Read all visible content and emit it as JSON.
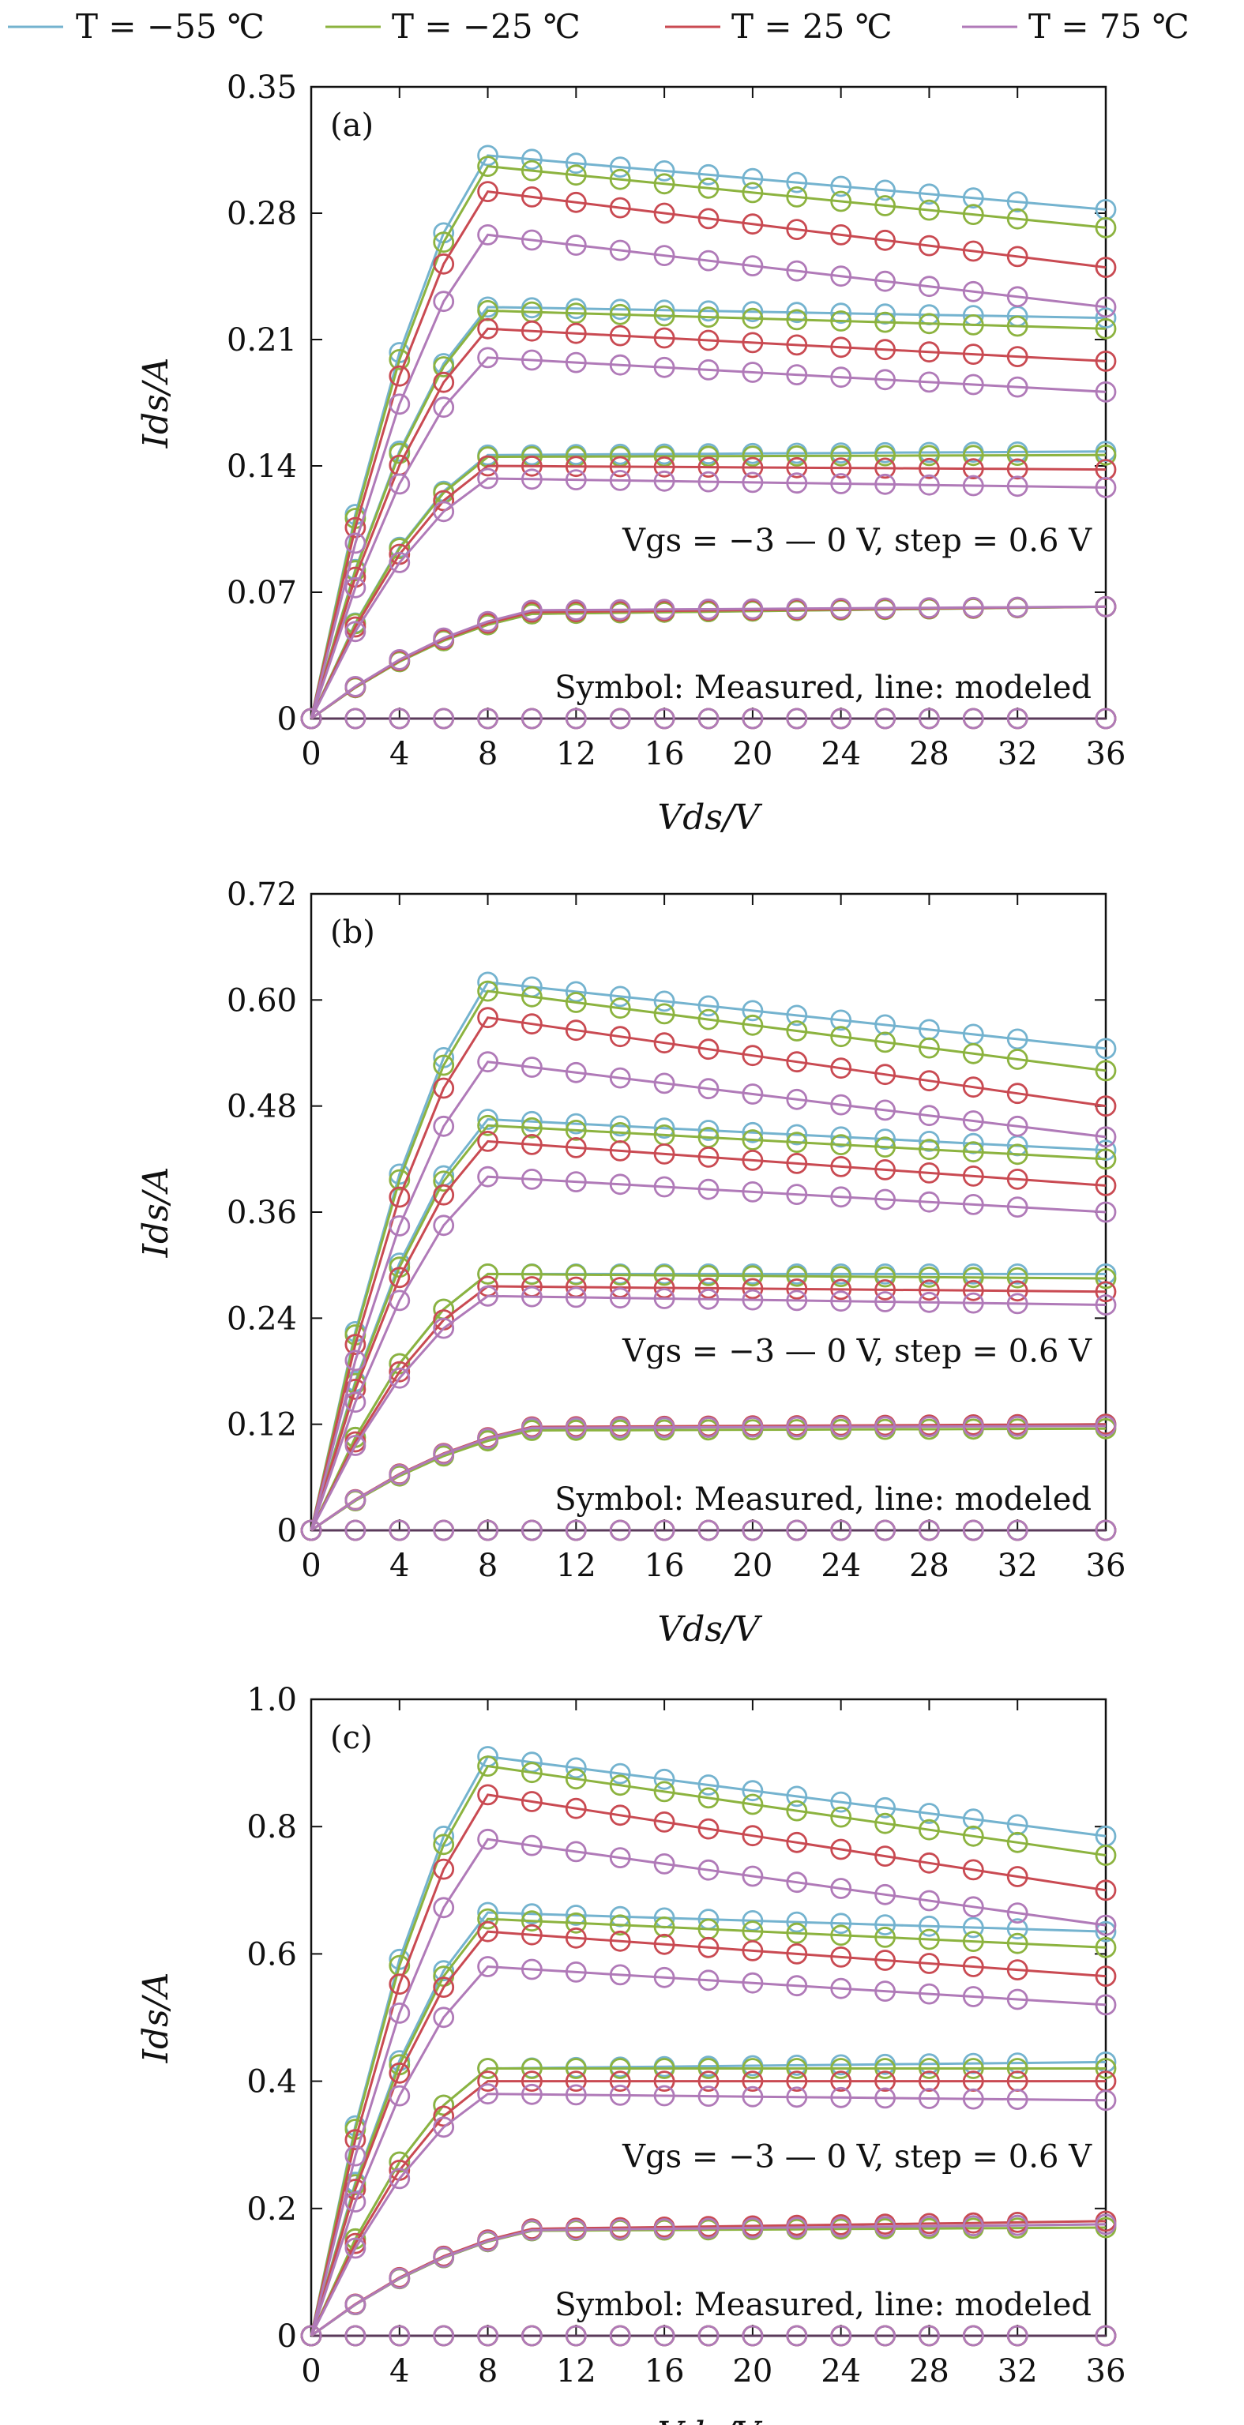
{
  "legend": [
    {
      "label": "T = −55 ℃",
      "color": "#74b3cf"
    },
    {
      "label": "T = −25 ℃",
      "color": "#8cb33f"
    },
    {
      "label": "T = 25 ℃",
      "color": "#c94a52"
    },
    {
      "label": "T = 75 ℃",
      "color": "#b07ab8"
    }
  ],
  "chart_data": [
    {
      "type": "line",
      "panel_label": "(a)",
      "xlabel": "Vds/V",
      "ylabel": "Ids/A",
      "xlim": [
        0,
        36
      ],
      "ylim": [
        0,
        0.35
      ],
      "xticks": [
        0,
        4,
        8,
        12,
        16,
        20,
        24,
        28,
        32,
        36
      ],
      "yticks": [
        0,
        0.07,
        0.14,
        0.21,
        0.28,
        0.35
      ],
      "ytick_labels": [
        "0",
        "0.07",
        "0.14",
        "0.21",
        "0.28",
        "0.35"
      ],
      "annotations": [
        "Vgs = −3 — 0 V, step = 0.6 V",
        "Symbol: Measured, line: modeled"
      ],
      "x": [
        0,
        2,
        4,
        6,
        8,
        10,
        12,
        14,
        16,
        18,
        20,
        22,
        24,
        26,
        28,
        30,
        32,
        36
      ],
      "vgs_curves": [
        {
          "vgs": -3.0,
          "peaks": [
            0,
            0,
            0,
            0
          ]
        },
        {
          "vgs": -2.4,
          "peaks": [
            0.058,
            0.058,
            0.059,
            0.06
          ]
        },
        {
          "vgs": -1.8,
          "peaks": [
            0.146,
            0.145,
            0.14,
            0.133
          ]
        },
        {
          "vgs": -1.2,
          "peaks": [
            0.228,
            0.226,
            0.216,
            0.2
          ]
        },
        {
          "vgs": -0.6,
          "peaks": [
            0.312,
            0.306,
            0.292,
            0.268
          ]
        }
      ],
      "end_values": {
        "-0.6": [
          0.282,
          0.272,
          0.25,
          0.228
        ],
        "-1.2": [
          0.222,
          0.216,
          0.198,
          0.181
        ],
        "-1.8": [
          0.148,
          0.146,
          0.138,
          0.128
        ],
        "-2.4": [
          0.062,
          0.062,
          0.062,
          0.062
        ]
      }
    },
    {
      "type": "line",
      "panel_label": "(b)",
      "xlabel": "Vds/V",
      "ylabel": "Ids/A",
      "xlim": [
        0,
        36
      ],
      "ylim": [
        0,
        0.72
      ],
      "xticks": [
        0,
        4,
        8,
        12,
        16,
        20,
        24,
        28,
        32,
        36
      ],
      "yticks": [
        0,
        0.12,
        0.24,
        0.36,
        0.48,
        0.6,
        0.72
      ],
      "ytick_labels": [
        "0",
        "0.12",
        "0.24",
        "0.36",
        "0.48",
        "0.60",
        "0.72"
      ],
      "annotations": [
        "Vgs = −3 — 0 V, step = 0.6 V",
        "Symbol: Measured, line: modeled"
      ],
      "x": [
        0,
        2,
        4,
        6,
        8,
        10,
        12,
        14,
        16,
        18,
        20,
        22,
        24,
        26,
        28,
        30,
        32,
        36
      ],
      "vgs_curves": [
        {
          "vgs": -3.0,
          "peaks": [
            0,
            0,
            0,
            0
          ]
        },
        {
          "vgs": -2.4,
          "peaks": [
            0.115,
            0.113,
            0.117,
            0.116
          ]
        },
        {
          "vgs": -1.8,
          "peaks": [
            0.29,
            0.29,
            0.276,
            0.265
          ]
        },
        {
          "vgs": -1.2,
          "peaks": [
            0.465,
            0.458,
            0.44,
            0.4
          ]
        },
        {
          "vgs": -0.6,
          "peaks": [
            0.62,
            0.61,
            0.58,
            0.53
          ]
        }
      ],
      "end_values": {
        "-0.6": [
          0.545,
          0.52,
          0.48,
          0.445
        ],
        "-1.2": [
          0.43,
          0.42,
          0.39,
          0.36
        ],
        "-1.8": [
          0.29,
          0.285,
          0.27,
          0.255
        ],
        "-2.4": [
          0.12,
          0.115,
          0.12,
          0.118
        ]
      }
    },
    {
      "type": "line",
      "panel_label": "(c)",
      "xlabel": "Vds/V",
      "ylabel": "Ids/A",
      "xlim": [
        0,
        36
      ],
      "ylim": [
        0,
        1.0
      ],
      "xticks": [
        0,
        4,
        8,
        12,
        16,
        20,
        24,
        28,
        32,
        36
      ],
      "yticks": [
        0,
        0.2,
        0.4,
        0.6,
        0.8,
        1.0
      ],
      "ytick_labels": [
        "0",
        "0.2",
        "0.4",
        "0.6",
        "0.8",
        "1.0"
      ],
      "annotations": [
        "Vgs = −3 — 0 V, step = 0.6 V",
        "Symbol: Measured, line: modeled"
      ],
      "x": [
        0,
        2,
        4,
        6,
        8,
        10,
        12,
        14,
        16,
        18,
        20,
        22,
        24,
        26,
        28,
        30,
        32,
        36
      ],
      "vgs_curves": [
        {
          "vgs": -3.0,
          "peaks": [
            0,
            0,
            0,
            0
          ]
        },
        {
          "vgs": -2.4,
          "peaks": [
            0.165,
            0.165,
            0.168,
            0.166
          ]
        },
        {
          "vgs": -1.8,
          "peaks": [
            0.42,
            0.42,
            0.4,
            0.38
          ]
        },
        {
          "vgs": -1.2,
          "peaks": [
            0.665,
            0.655,
            0.635,
            0.58
          ]
        },
        {
          "vgs": -0.6,
          "peaks": [
            0.91,
            0.895,
            0.85,
            0.78
          ]
        }
      ],
      "end_values": {
        "-0.6": [
          0.785,
          0.755,
          0.7,
          0.645
        ],
        "-1.2": [
          0.635,
          0.61,
          0.565,
          0.52
        ],
        "-1.8": [
          0.43,
          0.42,
          0.4,
          0.37
        ],
        "-2.4": [
          0.175,
          0.17,
          0.18,
          0.175
        ]
      }
    }
  ]
}
